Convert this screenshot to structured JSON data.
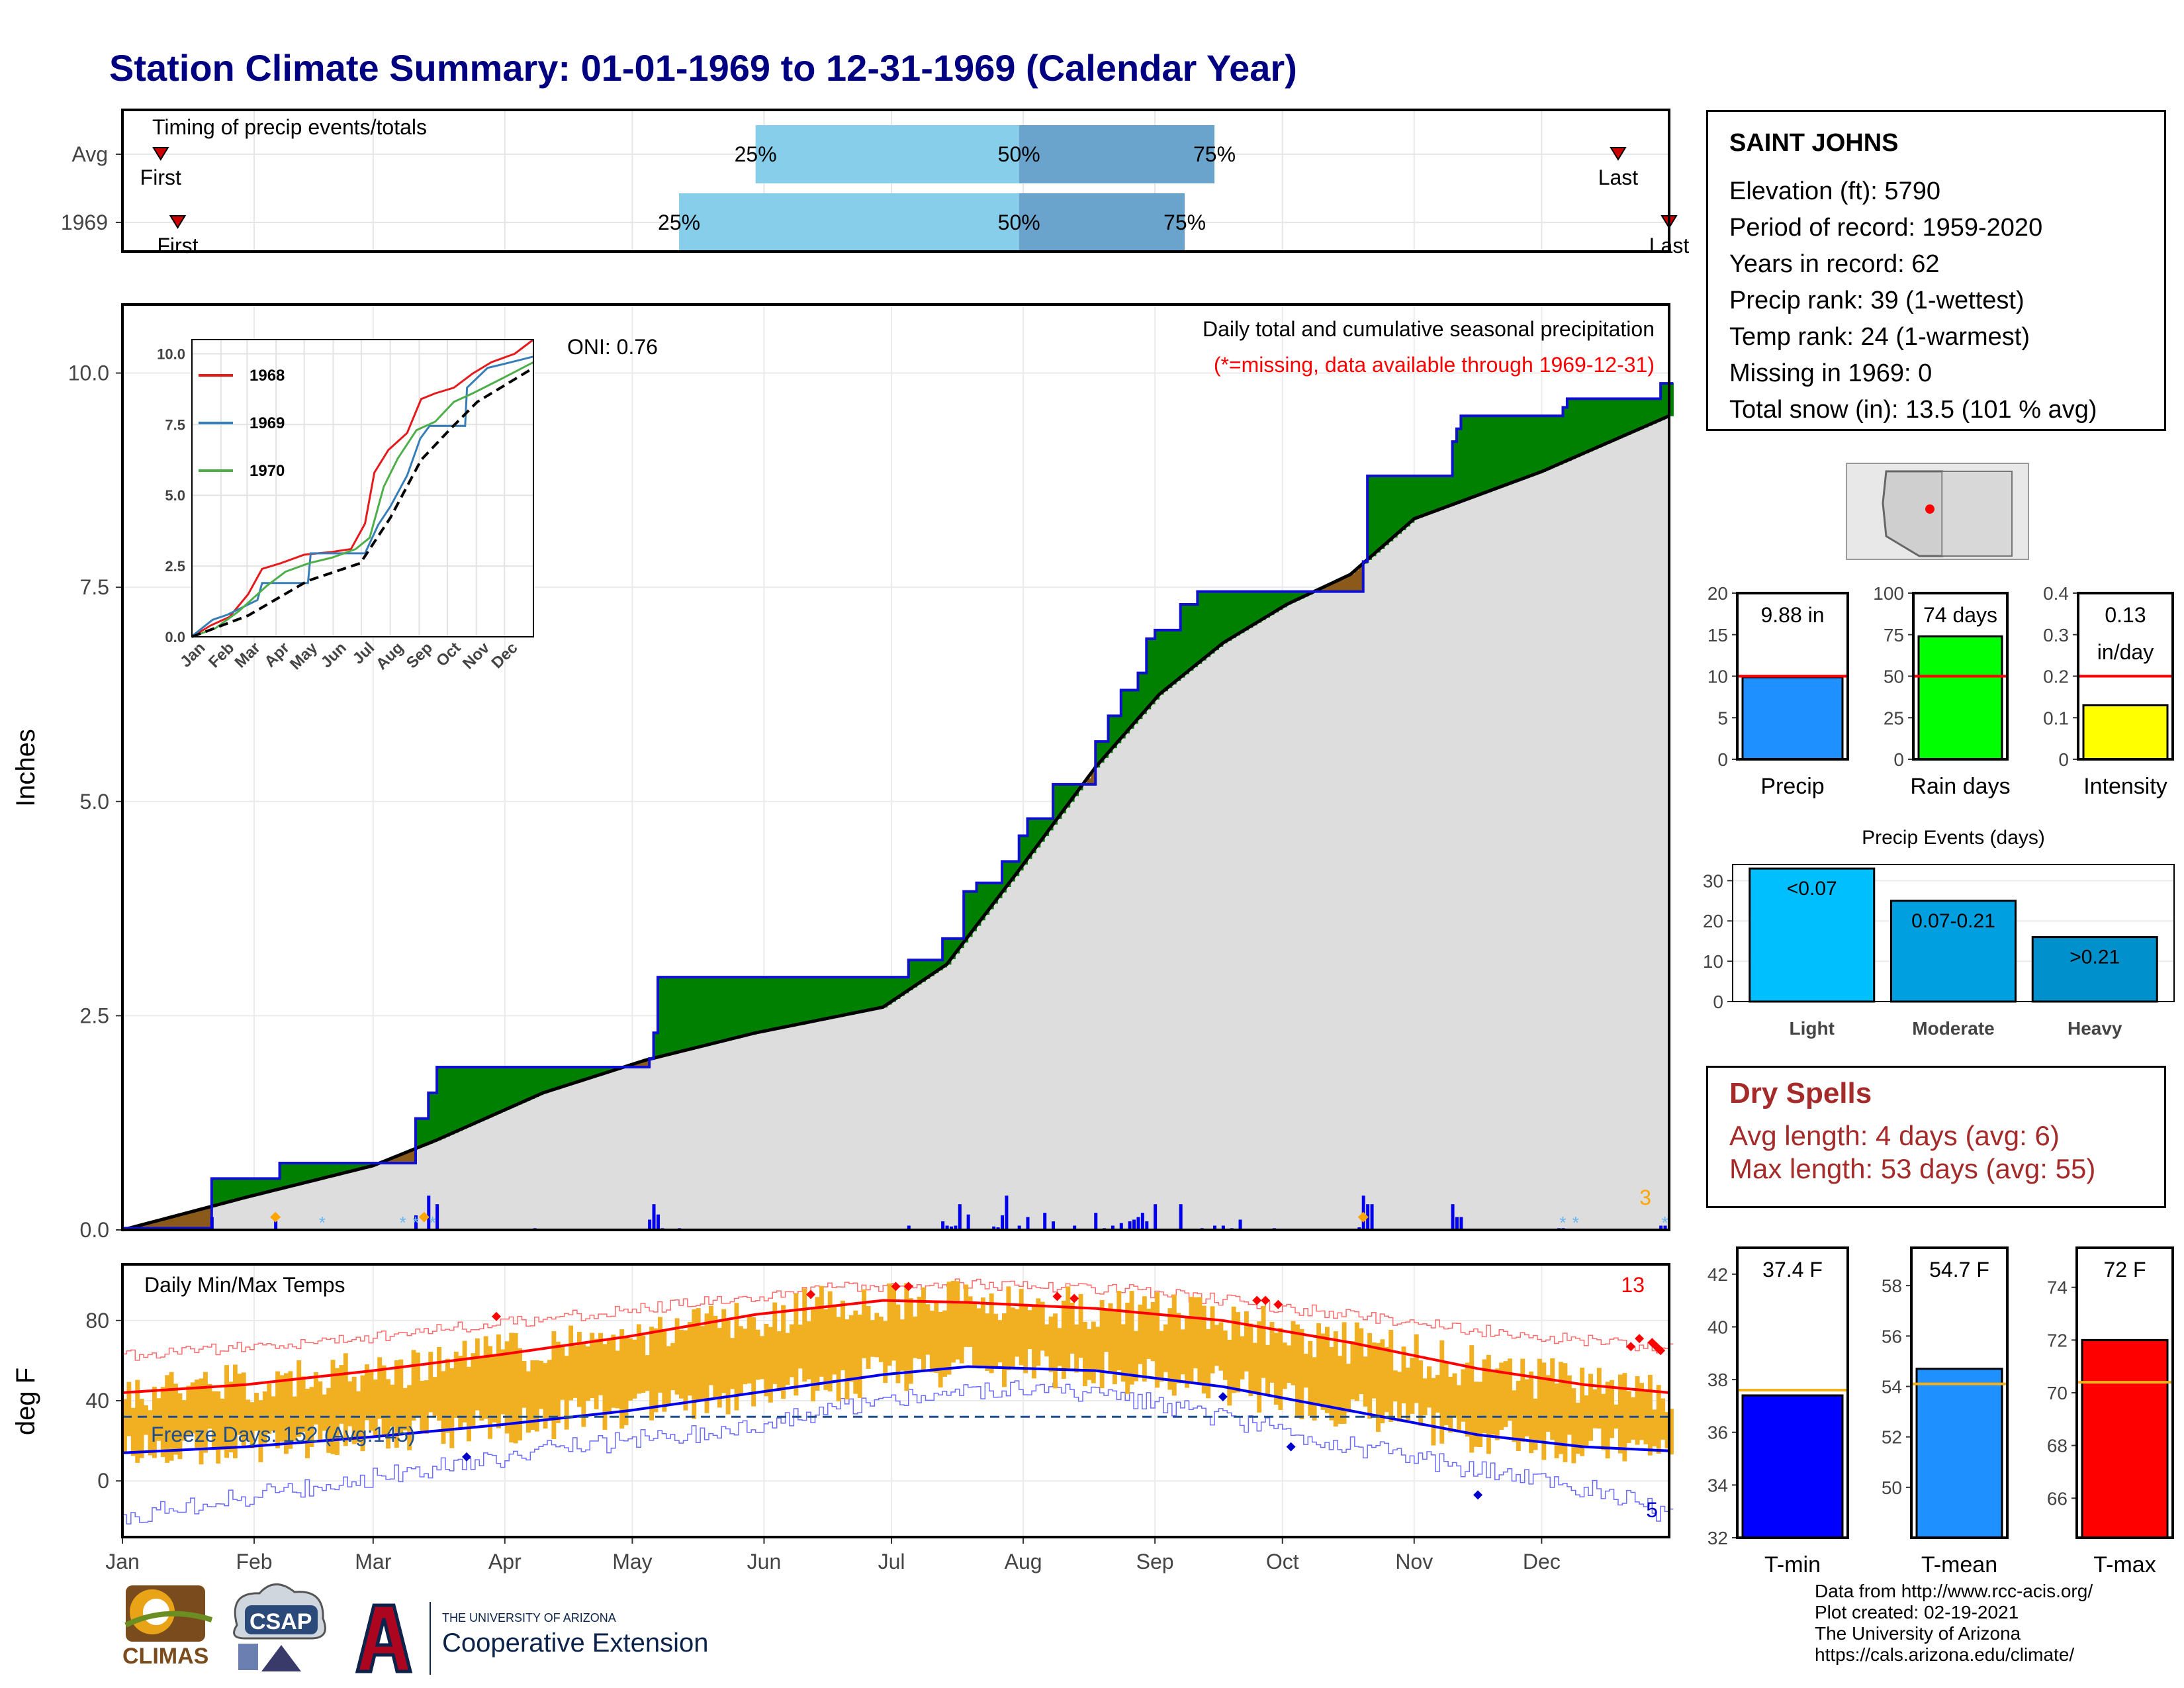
{
  "title": "Station Climate Summary: 01-01-1969 to 12-31-1969 (Calendar Year)",
  "station": {
    "name": "SAINT JOHNS",
    "lines": [
      "Elevation (ft): 5790",
      "Period of record: 1959-2020",
      "Years in record: 62",
      "Precip rank: 39 (1-wettest)",
      "Temp rank: 24 (1-warmest)",
      "Missing in 1969: 0",
      "Total snow (in): 13.5 (101 % avg)"
    ]
  },
  "dry_spells": {
    "title": "Dry Spells",
    "avg_length": "Avg length: 4 days (avg: 6)",
    "max_length": "Max length: 53 days (avg: 55)"
  },
  "footer": [
    "Data from http://www.rcc-acis.org/",
    "Plot created: 02-19-2021",
    "The University of Arizona",
    "https://cals.arizona.edu/climate/"
  ],
  "logos": {
    "climas": "CLIMAS",
    "csap": "CSAP",
    "ua_small": "THE UNIVERSITY OF ARIZONA",
    "ua_large": "Cooperative Extension"
  },
  "colors": {
    "navy_title": "#000080",
    "light_blue": "#87ceeb",
    "steel_blue": "#6aa3cc",
    "precip_bar": "#1e90ff",
    "rain_days_bar": "#00ff00",
    "intensity_bar": "#ffff00",
    "green_surplus": "#008000",
    "brown_deficit": "#8b5a1a",
    "normal_fill": "#dddddd",
    "temp_bar": "#f0b022",
    "tmin": "#0000ff",
    "tmax": "#ff0000",
    "dry_spell": "#a52a2a"
  },
  "chart_data": [
    {
      "type": "bar",
      "title": "Timing of precip events/totals",
      "categories": [
        "Avg",
        "1969"
      ],
      "series": [
        {
          "name": "Avg",
          "first_doy": 10,
          "p25_doy": 150,
          "p50_doy": 212,
          "p75_doy": 258,
          "last_doy": 353
        },
        {
          "name": "1969",
          "first_doy": 14,
          "p25_doy": 132,
          "p50_doy": 212,
          "p75_doy": 251,
          "last_doy": 365
        }
      ],
      "labels": {
        "first": "First",
        "last": "Last",
        "p25": "25%",
        "p50": "50%",
        "p75": "75%"
      },
      "xlim": [
        1,
        365
      ]
    },
    {
      "type": "area",
      "title": "Daily total and cumulative seasonal precipitation",
      "subtitle": "(*=missing, data available through 1969-12-31)",
      "annotation": "ONI: 0.76",
      "ylabel": "Inches",
      "ylim": [
        0,
        10.8
      ],
      "yticks": [
        0.0,
        2.5,
        5.0,
        7.5,
        10.0
      ],
      "xlim": [
        1,
        365
      ],
      "corner_count": "3",
      "cumulative_1969": [
        [
          1,
          0.02
        ],
        [
          21,
          0.02
        ],
        [
          22,
          0.6
        ],
        [
          37,
          0.6
        ],
        [
          38,
          0.78
        ],
        [
          65,
          0.78
        ],
        [
          70,
          0.95
        ],
        [
          70,
          1.3
        ],
        [
          72,
          1.3
        ],
        [
          73,
          1.6
        ],
        [
          75,
          1.6
        ],
        [
          75,
          1.9
        ],
        [
          124,
          1.9
        ],
        [
          125,
          2.0
        ],
        [
          126,
          2.3
        ],
        [
          127,
          2.95
        ],
        [
          185,
          2.95
        ],
        [
          186,
          3.15
        ],
        [
          193,
          3.15
        ],
        [
          194,
          3.4
        ],
        [
          198,
          3.4
        ],
        [
          199,
          3.95
        ],
        [
          200,
          3.95
        ],
        [
          202,
          4.05
        ],
        [
          208,
          4.3
        ],
        [
          212,
          4.6
        ],
        [
          214,
          4.8
        ],
        [
          220,
          5.2
        ],
        [
          230,
          5.7
        ],
        [
          233,
          6.0
        ],
        [
          236,
          6.3
        ],
        [
          240,
          6.5
        ],
        [
          242,
          6.9
        ],
        [
          244,
          7.0
        ],
        [
          250,
          7.3
        ],
        [
          253,
          7.3
        ],
        [
          254,
          7.45
        ],
        [
          272,
          7.45
        ],
        [
          292,
          7.45
        ],
        [
          293,
          7.8
        ],
        [
          294,
          8.8
        ],
        [
          313,
          8.8
        ],
        [
          314,
          9.2
        ],
        [
          315,
          9.35
        ],
        [
          316,
          9.5
        ],
        [
          339,
          9.5
        ],
        [
          340,
          9.6
        ],
        [
          341,
          9.7
        ],
        [
          362,
          9.7
        ],
        [
          363,
          9.88
        ],
        [
          365,
          9.88
        ]
      ],
      "cumulative_normal": [
        [
          1,
          0.0
        ],
        [
          30,
          0.38
        ],
        [
          60,
          0.75
        ],
        [
          75,
          1.05
        ],
        [
          100,
          1.6
        ],
        [
          124,
          1.98
        ],
        [
          150,
          2.3
        ],
        [
          165,
          2.45
        ],
        [
          180,
          2.6
        ],
        [
          195,
          3.1
        ],
        [
          212,
          4.2
        ],
        [
          230,
          5.4
        ],
        [
          245,
          6.25
        ],
        [
          260,
          6.85
        ],
        [
          275,
          7.3
        ],
        [
          290,
          7.65
        ],
        [
          305,
          8.3
        ],
        [
          335,
          8.85
        ],
        [
          365,
          9.5
        ]
      ],
      "daily_precip": [
        [
          22,
          0.15
        ],
        [
          37,
          0.1
        ],
        [
          70,
          0.17
        ],
        [
          73,
          0.4
        ],
        [
          75,
          0.3
        ],
        [
          98,
          0.02
        ],
        [
          125,
          0.12
        ],
        [
          126,
          0.3
        ],
        [
          127,
          0.18
        ],
        [
          128,
          0.02
        ],
        [
          132,
          0.02
        ],
        [
          186,
          0.05
        ],
        [
          194,
          0.1
        ],
        [
          195,
          0.05
        ],
        [
          196,
          0.04
        ],
        [
          197,
          0.05
        ],
        [
          198,
          0.3
        ],
        [
          200,
          0.18
        ],
        [
          206,
          0.04
        ],
        [
          207,
          0.03
        ],
        [
          208,
          0.17
        ],
        [
          209,
          0.4
        ],
        [
          212,
          0.05
        ],
        [
          214,
          0.15
        ],
        [
          218,
          0.2
        ],
        [
          220,
          0.1
        ],
        [
          225,
          0.05
        ],
        [
          230,
          0.2
        ],
        [
          232,
          0.02
        ],
        [
          234,
          0.05
        ],
        [
          236,
          0.08
        ],
        [
          238,
          0.1
        ],
        [
          239,
          0.12
        ],
        [
          240,
          0.15
        ],
        [
          241,
          0.2
        ],
        [
          242,
          0.1
        ],
        [
          244,
          0.3
        ],
        [
          250,
          0.3
        ],
        [
          255,
          0.02
        ],
        [
          258,
          0.05
        ],
        [
          260,
          0.05
        ],
        [
          262,
          0.02
        ],
        [
          264,
          0.12
        ],
        [
          272,
          0.02
        ],
        [
          292,
          0.03
        ],
        [
          293,
          0.4
        ],
        [
          294,
          0.3
        ],
        [
          295,
          0.3
        ],
        [
          314,
          0.3
        ],
        [
          315,
          0.15
        ],
        [
          316,
          0.15
        ],
        [
          339,
          0.02
        ],
        [
          340,
          0.02
        ],
        [
          363,
          0.05
        ],
        [
          364,
          0.05
        ]
      ],
      "inset": {
        "ylim": [
          0,
          10.5
        ],
        "yticks": [
          0.0,
          2.5,
          5.0,
          7.5,
          10.0
        ],
        "xticks": [
          "Jan",
          "Feb",
          "Mar",
          "Apr",
          "May",
          "Jun",
          "Jul",
          "Aug",
          "Sep",
          "Oct",
          "Nov",
          "Dec"
        ],
        "series": [
          {
            "name": "1968",
            "color": "#e41a1c",
            "points": [
              [
                0,
                0
              ],
              [
                20,
                0.4
              ],
              [
                40,
                0.7
              ],
              [
                60,
                1.5
              ],
              [
                75,
                2.4
              ],
              [
                95,
                2.6
              ],
              [
                120,
                2.9
              ],
              [
                150,
                3.0
              ],
              [
                170,
                3.1
              ],
              [
                185,
                4.0
              ],
              [
                195,
                5.8
              ],
              [
                210,
                6.6
              ],
              [
                230,
                7.2
              ],
              [
                245,
                8.4
              ],
              [
                260,
                8.6
              ],
              [
                280,
                8.8
              ],
              [
                300,
                9.3
              ],
              [
                320,
                9.7
              ],
              [
                345,
                10.0
              ],
              [
                365,
                10.5
              ]
            ]
          },
          {
            "name": "1969",
            "color": "#377eb8",
            "points": [
              [
                0,
                0.02
              ],
              [
                22,
                0.6
              ],
              [
                38,
                0.78
              ],
              [
                70,
                1.3
              ],
              [
                75,
                1.9
              ],
              [
                124,
                1.9
              ],
              [
                127,
                2.95
              ],
              [
                185,
                2.95
              ],
              [
                199,
                3.95
              ],
              [
                212,
                4.6
              ],
              [
                230,
                5.7
              ],
              [
                244,
                7.0
              ],
              [
                254,
                7.45
              ],
              [
                292,
                7.45
              ],
              [
                294,
                8.8
              ],
              [
                316,
                9.5
              ],
              [
                341,
                9.7
              ],
              [
                365,
                9.9
              ]
            ]
          },
          {
            "name": "1970",
            "color": "#4daf4a",
            "points": [
              [
                0,
                0.0
              ],
              [
                25,
                0.3
              ],
              [
                50,
                0.9
              ],
              [
                80,
                1.8
              ],
              [
                100,
                2.3
              ],
              [
                125,
                2.6
              ],
              [
                150,
                2.8
              ],
              [
                175,
                3.1
              ],
              [
                190,
                3.5
              ],
              [
                205,
                5.3
              ],
              [
                220,
                6.3
              ],
              [
                240,
                7.3
              ],
              [
                260,
                7.6
              ],
              [
                280,
                8.3
              ],
              [
                300,
                8.6
              ],
              [
                330,
                9.1
              ],
              [
                365,
                9.7
              ]
            ]
          },
          {
            "name": "avg",
            "color": "#000000",
            "points": [
              [
                0,
                0
              ],
              [
                60,
                0.75
              ],
              [
                124,
                1.98
              ],
              [
                180,
                2.6
              ],
              [
                212,
                4.2
              ],
              [
                245,
                6.25
              ],
              [
                275,
                7.3
              ],
              [
                305,
                8.3
              ],
              [
                365,
                9.5
              ]
            ]
          }
        ]
      }
    },
    {
      "type": "bar",
      "title": "Precip",
      "value": 9.88,
      "label": "9.88 in",
      "normal": 10.0,
      "ylim": [
        0,
        20
      ],
      "yticks": [
        0,
        5,
        10,
        15,
        20
      ]
    },
    {
      "type": "bar",
      "title": "Rain days",
      "value": 74,
      "label": "74 days",
      "normal": 50,
      "ylim": [
        0,
        100
      ],
      "yticks": [
        0,
        25,
        50,
        75,
        100
      ]
    },
    {
      "type": "bar",
      "title": "Intensity",
      "value": 0.13,
      "label": "0.13 in/day",
      "label_lines": [
        "0.13",
        "in/day"
      ],
      "normal": 0.2,
      "ylim": [
        0,
        0.4
      ],
      "yticks": [
        0.0,
        0.1,
        0.2,
        0.3,
        0.4
      ]
    },
    {
      "type": "bar",
      "title": "Precip Events (days)",
      "categories": [
        "Light",
        "Moderate",
        "Heavy"
      ],
      "bar_labels": [
        "<0.07",
        "0.07-0.21",
        ">0.21"
      ],
      "values": [
        33,
        25,
        16
      ],
      "ylim": [
        0,
        34
      ],
      "yticks": [
        0,
        10,
        20,
        30
      ]
    },
    {
      "type": "bar",
      "title": "Daily Min/Max Temps",
      "ylabel": "deg F",
      "ylim": [
        -28,
        108
      ],
      "yticks": [
        0,
        40,
        80
      ],
      "xticks": [
        "Jan",
        "Feb",
        "Mar",
        "Apr",
        "May",
        "Jun",
        "Jul",
        "Aug",
        "Sep",
        "Oct",
        "Nov",
        "Dec"
      ],
      "freeze_line": 32,
      "annotation": "Freeze Days: 152 (Avg:145)",
      "record_high_count": "13",
      "record_low_count": "5",
      "normal_max": [
        [
          1,
          44
        ],
        [
          30,
          48
        ],
        [
          60,
          55
        ],
        [
          90,
          63
        ],
        [
          120,
          72
        ],
        [
          150,
          83
        ],
        [
          180,
          90
        ],
        [
          200,
          89
        ],
        [
          230,
          86
        ],
        [
          260,
          80
        ],
        [
          290,
          69
        ],
        [
          320,
          56
        ],
        [
          345,
          48
        ],
        [
          365,
          44
        ]
      ],
      "normal_min": [
        [
          1,
          14
        ],
        [
          30,
          17
        ],
        [
          60,
          22
        ],
        [
          90,
          28
        ],
        [
          120,
          35
        ],
        [
          150,
          44
        ],
        [
          180,
          53
        ],
        [
          200,
          57
        ],
        [
          230,
          55
        ],
        [
          260,
          47
        ],
        [
          290,
          35
        ],
        [
          320,
          23
        ],
        [
          345,
          17
        ],
        [
          365,
          15
        ]
      ],
      "record_max": [
        [
          1,
          62
        ],
        [
          60,
          72
        ],
        [
          120,
          85
        ],
        [
          170,
          97
        ],
        [
          200,
          98
        ],
        [
          240,
          95
        ],
        [
          280,
          85
        ],
        [
          320,
          75
        ],
        [
          365,
          66
        ]
      ],
      "record_min": [
        [
          1,
          -18
        ],
        [
          30,
          -8
        ],
        [
          60,
          2
        ],
        [
          100,
          15
        ],
        [
          140,
          25
        ],
        [
          180,
          40
        ],
        [
          210,
          46
        ],
        [
          240,
          40
        ],
        [
          280,
          22
        ],
        [
          320,
          5
        ],
        [
          350,
          -5
        ],
        [
          365,
          -18
        ]
      ]
    },
    {
      "type": "bar",
      "title": "T-min",
      "value": 37.4,
      "label": "37.4 F",
      "normal": 37.6,
      "ylim": [
        32,
        43
      ],
      "yticks": [
        32,
        34,
        36,
        38,
        40,
        42
      ]
    },
    {
      "type": "bar",
      "title": "T-mean",
      "value": 54.7,
      "label": "54.7 F",
      "normal": 54.1,
      "ylim": [
        48,
        59.5
      ],
      "yticks": [
        50,
        52,
        54,
        56,
        58
      ]
    },
    {
      "type": "bar",
      "title": "T-max",
      "value": 72,
      "label": "72 F",
      "normal": 70.4,
      "ylim": [
        64.5,
        75.5
      ],
      "yticks": [
        66,
        68,
        70,
        72,
        74
      ]
    }
  ]
}
